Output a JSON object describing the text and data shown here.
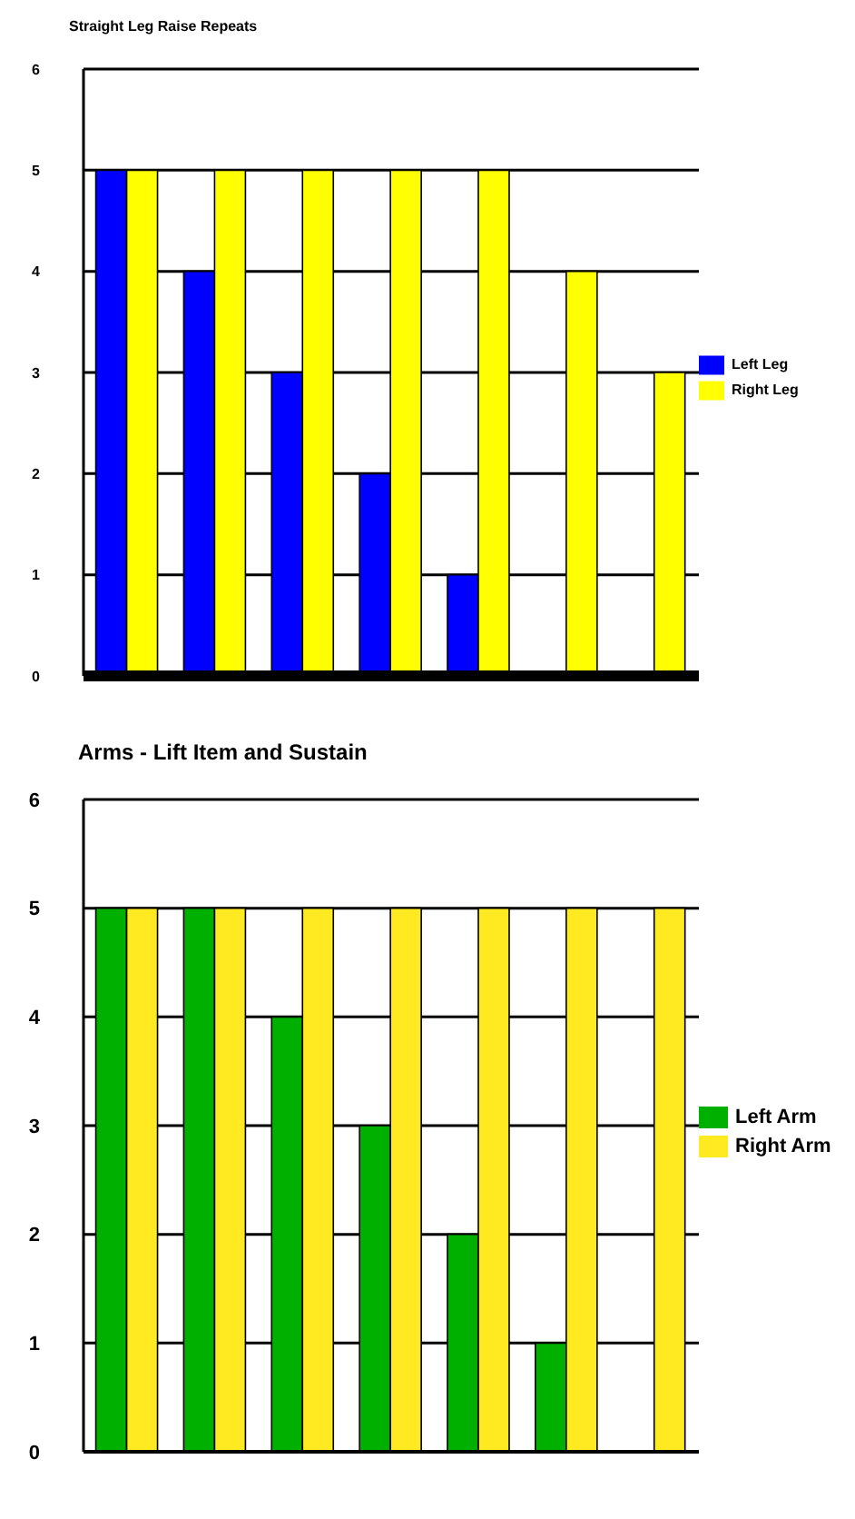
{
  "chart_data": [
    {
      "type": "bar",
      "title": "Straight Leg Raise Repeats",
      "categories": [
        null,
        null,
        null,
        null,
        null,
        null,
        null
      ],
      "series": [
        {
          "name": "Left Leg",
          "color": "#0000ff",
          "values": [
            5,
            4,
            3,
            2,
            1,
            0,
            0
          ]
        },
        {
          "name": "Right Leg",
          "color": "#ffff00",
          "values": [
            5,
            5,
            5,
            5,
            5,
            4,
            3
          ]
        }
      ],
      "ylim": [
        0,
        6
      ],
      "yticks": [
        0,
        1,
        2,
        3,
        4,
        5,
        6
      ],
      "grid": "y",
      "legend": "right"
    },
    {
      "type": "bar",
      "title": "Arms - Lift Item and Sustain",
      "categories": [
        null,
        null,
        null,
        null,
        null,
        null,
        null
      ],
      "series": [
        {
          "name": "Left Arm",
          "color": "#00b000",
          "values": [
            5,
            5,
            4,
            3,
            2,
            1,
            0
          ]
        },
        {
          "name": "Right Arm",
          "color": "#ffe920",
          "values": [
            5,
            5,
            5,
            5,
            5,
            5,
            5
          ]
        }
      ],
      "ylim": [
        0,
        6
      ],
      "yticks": [
        0,
        1,
        2,
        3,
        4,
        5,
        6
      ],
      "grid": "y",
      "legend": "right"
    }
  ]
}
